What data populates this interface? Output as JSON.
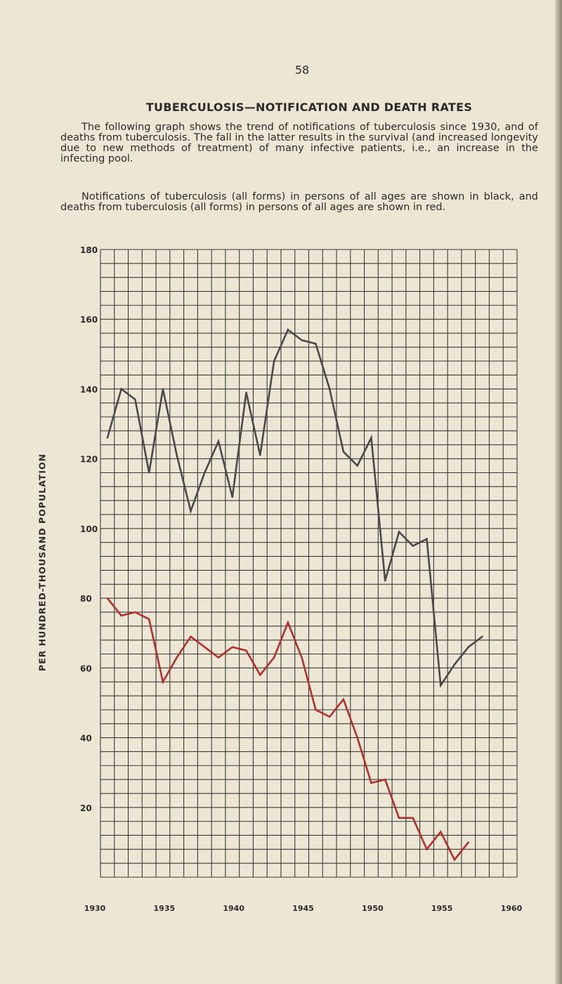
{
  "page_number": "58",
  "heading": "TUBERCULOSIS—NOTIFICATION AND DEATH RATES",
  "paragraph1": "The following graph shows the trend of notifications of tuberculosis since 1930, and of deaths from tuberculosis. The fall in the latter results in the survival (and increased longevity due to new methods of treatment) of many infective patients, i.e., an increase in the infecting pool.",
  "paragraph2": "Notifications of tuberculosis (all forms) in persons of all ages are shown in black, and deaths from tuberculosis (all forms) in persons of all ages are shown in red.",
  "colors": {
    "notifications": "#4a4a4a",
    "deaths": "#b0302c",
    "grid": "#3a3a3a",
    "paper": "#ede6d4"
  },
  "chart_data": {
    "type": "line",
    "title": "",
    "xlabel": "",
    "ylabel": "PER HUNDRED-THOUSAND POPULATION",
    "xlim": [
      1930,
      1960
    ],
    "ylim": [
      0,
      180
    ],
    "x_ticks": [
      "1930",
      "1935",
      "1940",
      "1945",
      "1950",
      "1955",
      "1960"
    ],
    "y_ticks": [
      "20",
      "40",
      "60",
      "80",
      "100",
      "120",
      "140",
      "160",
      "180"
    ],
    "grid": true,
    "series": [
      {
        "color": "black",
        "points": [
          [
            1930.5,
            126
          ],
          [
            1931.5,
            140
          ],
          [
            1932.5,
            137
          ],
          [
            1933.5,
            116
          ],
          [
            1934.5,
            140
          ],
          [
            1935.5,
            121
          ],
          [
            1936.5,
            105
          ],
          [
            1937.5,
            116
          ],
          [
            1938.5,
            125
          ],
          [
            1939.5,
            109
          ],
          [
            1940.5,
            139
          ],
          [
            1941.5,
            121
          ],
          [
            1942.5,
            148
          ],
          [
            1943.5,
            157
          ],
          [
            1944.5,
            154
          ],
          [
            1945.5,
            153
          ],
          [
            1946.5,
            140
          ],
          [
            1947.5,
            122
          ],
          [
            1948.5,
            118
          ],
          [
            1949.5,
            126
          ],
          [
            1950.5,
            85
          ],
          [
            1951.5,
            99
          ],
          [
            1952.5,
            95
          ],
          [
            1953.5,
            97
          ],
          [
            1954.5,
            55
          ],
          [
            1955.5,
            61
          ],
          [
            1956.5,
            66
          ],
          [
            1957.5,
            69
          ]
        ]
      },
      {
        "color": "red",
        "points": [
          [
            1930.5,
            80
          ],
          [
            1931.5,
            75
          ],
          [
            1932.5,
            76
          ],
          [
            1933.5,
            74
          ],
          [
            1934.5,
            56
          ],
          [
            1935.5,
            63
          ],
          [
            1936.5,
            69
          ],
          [
            1937.5,
            66
          ],
          [
            1938.5,
            63
          ],
          [
            1939.5,
            66
          ],
          [
            1940.5,
            65
          ],
          [
            1941.5,
            58
          ],
          [
            1942.5,
            63
          ],
          [
            1943.5,
            73
          ],
          [
            1944.5,
            63
          ],
          [
            1945.5,
            48
          ],
          [
            1946.5,
            46
          ],
          [
            1947.5,
            51
          ],
          [
            1948.5,
            40
          ],
          [
            1949.5,
            27
          ],
          [
            1950.5,
            28
          ],
          [
            1951.5,
            17
          ],
          [
            1952.5,
            17
          ],
          [
            1953.5,
            8
          ],
          [
            1954.5,
            13
          ],
          [
            1955.5,
            5
          ],
          [
            1956.5,
            10
          ]
        ]
      }
    ]
  }
}
